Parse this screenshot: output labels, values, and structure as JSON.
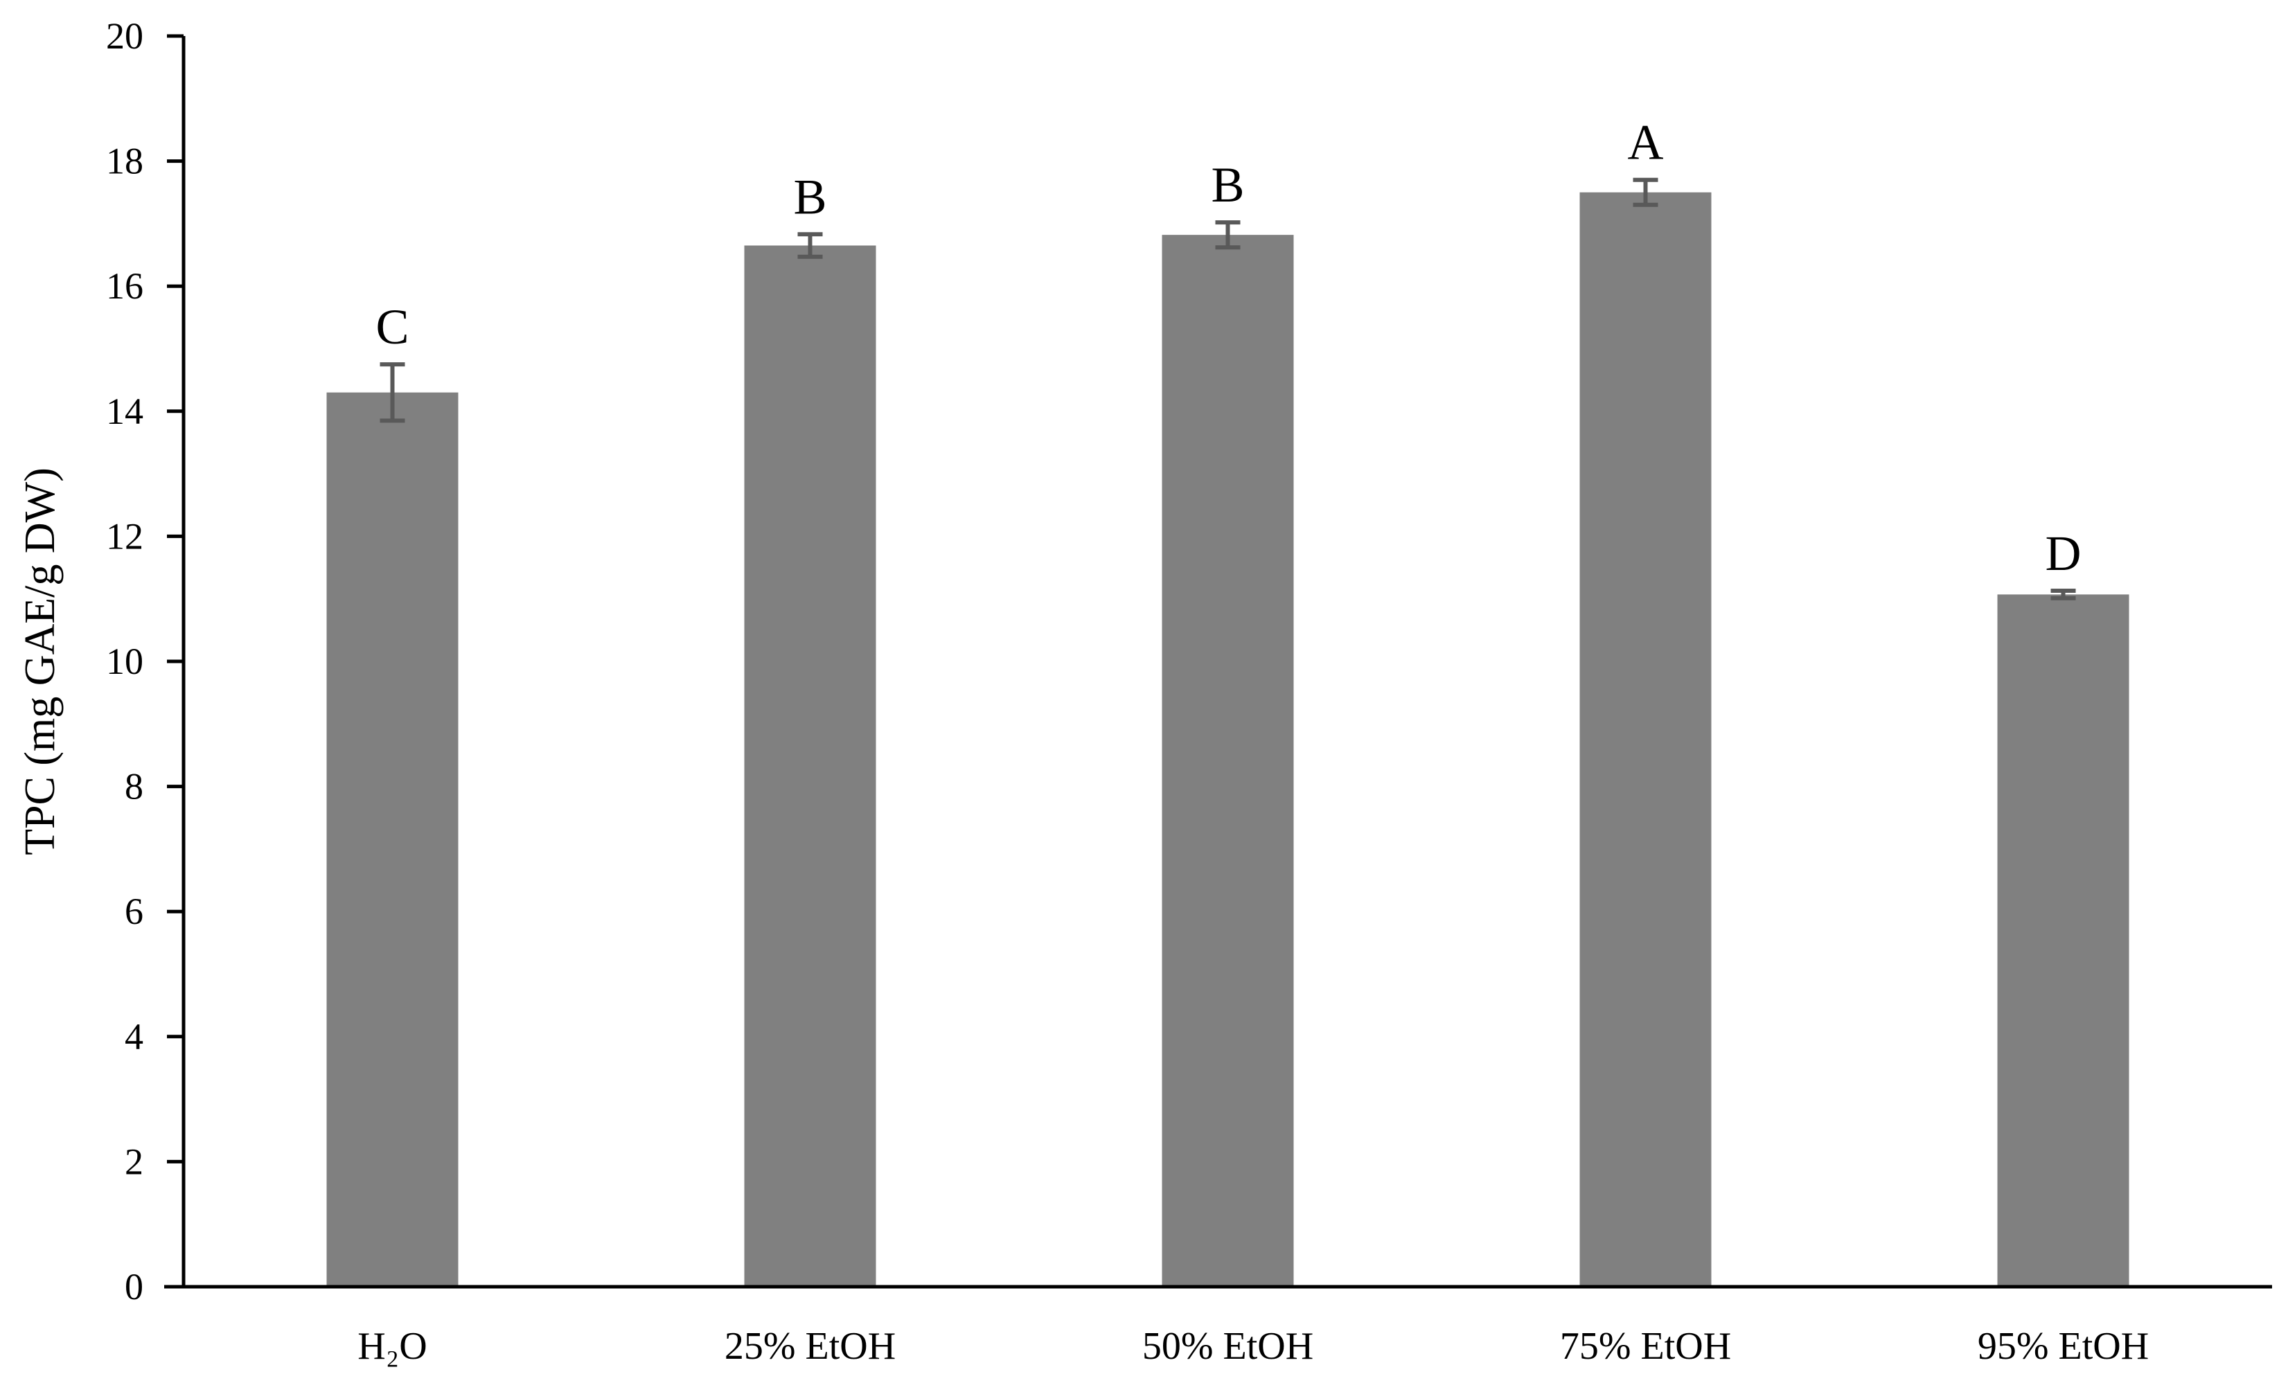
{
  "chart_data": {
    "type": "bar",
    "title": "",
    "xlabel": "",
    "ylabel": "TPC (mg GAE/g DW)",
    "ylim": [
      0,
      20
    ],
    "yticks": [
      "0",
      "2",
      "4",
      "6",
      "8",
      "10",
      "12",
      "14",
      "16",
      "18",
      "20"
    ],
    "categories": [
      "H₂O",
      "25% EtOH",
      "50% EtOH",
      "75% EtOH",
      "95% EtOH"
    ],
    "values": [
      14.3,
      16.65,
      16.82,
      17.5,
      11.07
    ],
    "errors": [
      0.45,
      0.18,
      0.2,
      0.2,
      0.06
    ],
    "significance_labels": [
      "C",
      "B",
      "B",
      "A",
      "D"
    ],
    "grid": false,
    "legend": "none",
    "colors": {
      "bar": "#808080",
      "error_bar": "#595959",
      "axis": "#000000"
    }
  }
}
